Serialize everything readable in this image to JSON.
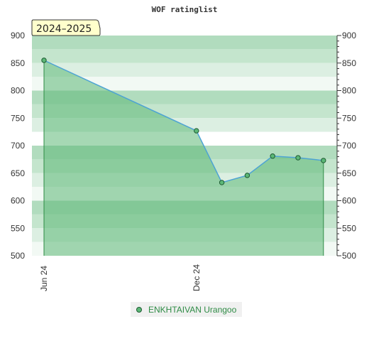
{
  "chart_data": {
    "type": "area",
    "title": "WOF ratinglist",
    "season_label": "2024–2025",
    "ylim": [
      500,
      900
    ],
    "y_ticks": [
      500,
      550,
      600,
      650,
      700,
      750,
      800,
      850,
      900
    ],
    "x_ticks": [
      {
        "label": "Jun 24",
        "index": 0
      },
      {
        "label": "Dec 24",
        "index": 6
      }
    ],
    "series": [
      {
        "name": "ENKHTAIVAN Urangoo",
        "x": [
          0,
          1,
          2,
          3,
          4,
          5,
          6,
          7,
          8,
          9,
          10,
          11
        ],
        "values": [
          855,
          null,
          null,
          null,
          null,
          null,
          727,
          633,
          646,
          681,
          678,
          673
        ]
      }
    ],
    "grid": true,
    "legend_position": "bottom-center",
    "colors": {
      "line": "#4da3d4",
      "fill": "#5cb877",
      "marker_fill": "#5cb877",
      "marker_stroke": "#1e5a32",
      "drop_line": "#2e8b45",
      "season_box_fill": "#ffffcc",
      "season_box_stroke": "#333333"
    }
  }
}
